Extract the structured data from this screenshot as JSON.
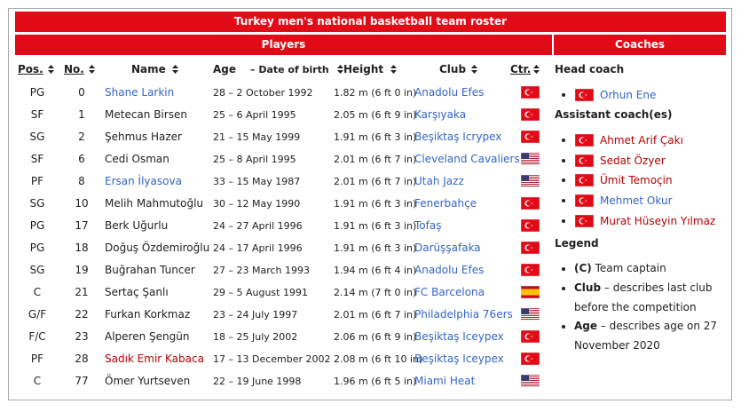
{
  "title": "Turkey men's national basketball team roster",
  "players_heading": "Players",
  "coaches_heading": "Coaches",
  "columns": {
    "pos": "Pos.",
    "no": "No.",
    "name": "Name",
    "age": "Age",
    "age_sub": "– Date of birth",
    "height": "Height",
    "club": "Club",
    "ctr": "Ctr."
  },
  "rows": [
    {
      "pos": "PG",
      "no": 0,
      "name": "Shane Larkin",
      "name_color": "blue",
      "age": "28 – 2 October 1992",
      "height": "1.82 m (6 ft 0 in)",
      "club": "Anadolu Efes",
      "flag": "TR"
    },
    {
      "pos": "SF",
      "no": 1,
      "name": "Metecan Birsen",
      "name_color": "black",
      "age": "25 – 6 April 1995",
      "height": "2.05 m (6 ft 9 in)",
      "club": "Karşıyaka",
      "flag": "TR"
    },
    {
      "pos": "SG",
      "no": 2,
      "name": "Şehmus Hazer",
      "name_color": "black",
      "age": "21 – 15 May 1999",
      "height": "1.91 m (6 ft 3 in)",
      "club": "Beşiktaş Icrypex",
      "flag": "TR"
    },
    {
      "pos": "SF",
      "no": 6,
      "name": "Cedi Osman",
      "name_color": "black",
      "age": "25 – 8 April 1995",
      "height": "2.01 m (6 ft 7 in)",
      "club": "Cleveland Cavaliers",
      "flag": "US"
    },
    {
      "pos": "PF",
      "no": 8,
      "name": "Ersan İlyasova",
      "name_color": "blue",
      "age": "33 – 15 May 1987",
      "height": "2.01 m (6 ft 7 in)",
      "club": "Utah Jazz",
      "flag": "US"
    },
    {
      "pos": "SG",
      "no": 10,
      "name": "Melih Mahmutoğlu",
      "name_color": "black",
      "age": "30 – 12 May 1990",
      "height": "1.91 m (6 ft 3 in)",
      "club": "Fenerbahçe",
      "flag": "TR"
    },
    {
      "pos": "PG",
      "no": 17,
      "name": "Berk Uğurlu",
      "name_color": "black",
      "age": "24 – 27 April 1996",
      "height": "1.91 m (6 ft 3 in)",
      "club": "Tofaş",
      "flag": "TR"
    },
    {
      "pos": "PG",
      "no": 18,
      "name": "Doğuş Özdemiroğlu",
      "name_color": "black",
      "age": "24 – 17 April 1996",
      "height": "1.91 m (6 ft 3 in)",
      "club": "Darüşşafaka",
      "flag": "TR"
    },
    {
      "pos": "SG",
      "no": 19,
      "name": "Buğrahan Tuncer",
      "name_color": "black",
      "age": "27 – 23 March 1993",
      "height": "1.94 m (6 ft 4 in)",
      "club": "Anadolu Efes",
      "flag": "TR"
    },
    {
      "pos": "C",
      "no": 21,
      "name": "Sertaç Şanlı",
      "name_color": "black",
      "age": "29 – 5 August 1991",
      "height": "2.14 m (7 ft 0 in)",
      "club": "FC Barcelona",
      "flag": "ES"
    },
    {
      "pos": "G/F",
      "no": 22,
      "name": "Furkan Korkmaz",
      "name_color": "black",
      "age": "23 – 24 July 1997",
      "height": "2.01 m (6 ft 7 in)",
      "club": "Philadelphia 76ers",
      "flag": "US"
    },
    {
      "pos": "F/C",
      "no": 23,
      "name": "Alperen Şengün",
      "name_color": "black",
      "age": "18 – 25 July 2002",
      "height": "2.06 m (6 ft 9 in)",
      "club": "Beşiktaş Iceypex",
      "flag": "TR"
    },
    {
      "pos": "PF",
      "no": 28,
      "name": "Sadık Emir Kabaca",
      "name_color": "red",
      "age": "17 – 13 December 2002",
      "height": "2.08 m (6 ft 10 in)",
      "club": "Beşiktaş Iceypex",
      "flag": "TR"
    },
    {
      "pos": "C",
      "no": 77,
      "name": "Ömer Yurtseven",
      "name_color": "black",
      "age": "22 – 19 June 1998",
      "height": "1.96 m (6 ft 5 in)",
      "club": "Miami Heat",
      "flag": "US"
    }
  ],
  "head_coach_label": "Head coach",
  "head_coach": {
    "name": "Orhun Ene",
    "name_color": "blue",
    "flag": "TR"
  },
  "assistants_label": "Assistant coach(es)",
  "assistants": [
    {
      "name": "Ahmet Arif Çakı",
      "name_color": "red",
      "flag": "TR"
    },
    {
      "name": "Sedat Özyer",
      "name_color": "red",
      "flag": "TR"
    },
    {
      "name": "Ümit Temoçin",
      "name_color": "red",
      "flag": "TR"
    },
    {
      "name": "Mehmet Okur",
      "name_color": "blue",
      "flag": "TR"
    },
    {
      "name": "Murat Hüseyin Yılmaz",
      "name_color": "red",
      "flag": "TR"
    }
  ],
  "legend_label": "Legend",
  "legend": [
    {
      "term": "(C)",
      "text": "Team captain"
    },
    {
      "term": "Club",
      "text": "– describes last club before the competition"
    },
    {
      "term": "Age",
      "text": "– describes age on 27 November 2020"
    }
  ]
}
